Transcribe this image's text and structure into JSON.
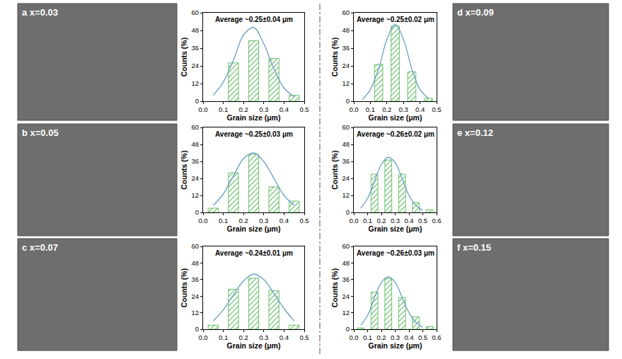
{
  "images": [
    {
      "label": "a x=0.03"
    },
    {
      "label": "b x=0.05"
    },
    {
      "label": "c x=0.07"
    },
    {
      "label": "d x=0.09"
    },
    {
      "label": "e x=0.12"
    },
    {
      "label": "f x=0.15"
    }
  ],
  "chart_data": [
    {
      "type": "bar",
      "title": "Average ~0.25±0.04 μm",
      "xlabel": "Grain size (μm)",
      "ylabel": "Counts (%)",
      "x": [
        0.15,
        0.25,
        0.35,
        0.45
      ],
      "values": [
        26,
        41,
        29,
        4
      ],
      "color": "#d4efd4",
      "curve": {
        "type": "line",
        "color": "#6a9fc8",
        "x": [
          0.05,
          0.1,
          0.15,
          0.2,
          0.25,
          0.3,
          0.35,
          0.4,
          0.45
        ],
        "values": [
          4,
          13,
          28,
          45,
          50,
          39,
          22,
          9,
          3
        ]
      },
      "xlim": [
        0,
        0.5
      ],
      "xticks": [
        {
          "value": 0,
          "label": "0.0"
        },
        0.1,
        0.2,
        0.3,
        0.4,
        0.5
      ],
      "ylim": [
        0,
        60
      ],
      "yticks": [
        0,
        12,
        24,
        36,
        48,
        60
      ],
      "grid": false
    },
    {
      "type": "bar",
      "title": "Average ~0.25±0.03 μm",
      "xlabel": "Grain size (μm)",
      "ylabel": "Counts (%)",
      "x": [
        0.05,
        0.15,
        0.25,
        0.35,
        0.45
      ],
      "values": [
        3,
        28,
        41,
        18,
        8
      ],
      "color": "#d4efd4",
      "curve": {
        "type": "line",
        "color": "#6a9fc8",
        "x": [
          0.05,
          0.1,
          0.15,
          0.2,
          0.25,
          0.3,
          0.35,
          0.4,
          0.45
        ],
        "values": [
          5,
          13,
          26,
          38,
          42,
          36,
          24,
          12,
          5
        ]
      },
      "xlim": [
        0,
        0.5
      ],
      "xticks": [
        {
          "value": 0,
          "label": "0.0"
        },
        0.1,
        0.2,
        0.3,
        0.4,
        0.5
      ],
      "ylim": [
        0,
        60
      ],
      "yticks": [
        0,
        12,
        24,
        36,
        48,
        60
      ],
      "grid": false
    },
    {
      "type": "bar",
      "title": "Average ~0.24±0.01 μm",
      "xlabel": "Grain size (μm)",
      "ylabel": "Counts (%)",
      "x": [
        0.05,
        0.15,
        0.25,
        0.35,
        0.45
      ],
      "values": [
        3,
        29,
        37,
        28,
        3
      ],
      "color": "#d4efd4",
      "curve": {
        "type": "line",
        "color": "#6a9fc8",
        "x": [
          0.05,
          0.1,
          0.15,
          0.2,
          0.25,
          0.3,
          0.35,
          0.4,
          0.45
        ],
        "values": [
          6,
          14,
          25,
          35,
          40,
          36,
          26,
          15,
          6
        ]
      },
      "xlim": [
        0,
        0.5
      ],
      "xticks": [
        {
          "value": 0,
          "label": "0.0"
        },
        0.1,
        0.2,
        0.3,
        0.4,
        0.5
      ],
      "ylim": [
        0,
        60
      ],
      "yticks": [
        0,
        12,
        24,
        36,
        48,
        60
      ],
      "grid": false
    },
    {
      "type": "bar",
      "title": "Average ~0.25±0.02 μm",
      "xlabel": "Grain size (μm)",
      "ylabel": "Counts (%)",
      "x": [
        0.15,
        0.25,
        0.35,
        0.45
      ],
      "values": [
        25,
        51,
        20,
        2
      ],
      "color": "#d4efd4",
      "curve": {
        "type": "line",
        "color": "#6a9fc8",
        "x": [
          0.05,
          0.1,
          0.15,
          0.2,
          0.25,
          0.3,
          0.35,
          0.4,
          0.45
        ],
        "values": [
          1,
          8,
          22,
          42,
          52,
          42,
          22,
          8,
          2
        ]
      },
      "xlim": [
        0,
        0.5
      ],
      "xticks": [
        {
          "value": 0,
          "label": "0.0"
        },
        0.1,
        0.2,
        0.3,
        0.4,
        0.5
      ],
      "ylim": [
        0,
        60
      ],
      "yticks": [
        0,
        12,
        24,
        36,
        48,
        60
      ],
      "grid": false
    },
    {
      "type": "bar",
      "title": "Average ~0.26±0.02 μm",
      "xlabel": "Grain size (μm)",
      "ylabel": "Counts (%)",
      "x": [
        0.15,
        0.25,
        0.35,
        0.45,
        0.55
      ],
      "values": [
        27,
        37,
        27,
        7,
        2
      ],
      "color": "#d4efd4",
      "curve": {
        "type": "line",
        "color": "#6a9fc8",
        "x": [
          0.05,
          0.1,
          0.15,
          0.2,
          0.25,
          0.3,
          0.35,
          0.4,
          0.45,
          0.5
        ],
        "values": [
          3,
          10,
          22,
          34,
          39,
          35,
          24,
          12,
          5,
          1.5
        ]
      },
      "xlim": [
        0,
        0.6
      ],
      "xticks": [
        {
          "value": 0,
          "label": "0.0"
        },
        0.1,
        0.2,
        0.3,
        0.4,
        0.5,
        0.6
      ],
      "ylim": [
        0,
        60
      ],
      "yticks": [
        0,
        12,
        24,
        36,
        48,
        60
      ],
      "grid": false
    },
    {
      "type": "bar",
      "title": "Average ~0.26±0.03 μm",
      "xlabel": "Grain size (μm)",
      "ylabel": "Counts (%)",
      "x": [
        0.05,
        0.15,
        0.25,
        0.35,
        0.45,
        0.55
      ],
      "values": [
        1,
        27,
        37,
        23,
        9,
        2
      ],
      "color": "#d4efd4",
      "curve": {
        "type": "line",
        "color": "#6a9fc8",
        "x": [
          0.05,
          0.1,
          0.15,
          0.2,
          0.25,
          0.3,
          0.35,
          0.4,
          0.45,
          0.5
        ],
        "values": [
          3,
          10,
          23,
          34,
          38,
          34,
          23,
          12,
          5,
          1.5
        ]
      },
      "xlim": [
        0,
        0.6
      ],
      "xticks": [
        {
          "value": 0,
          "label": "0.0"
        },
        0.1,
        0.2,
        0.3,
        0.4,
        0.5,
        0.6
      ],
      "ylim": [
        0,
        60
      ],
      "yticks": [
        0,
        12,
        24,
        36,
        48,
        60
      ],
      "grid": false
    }
  ]
}
